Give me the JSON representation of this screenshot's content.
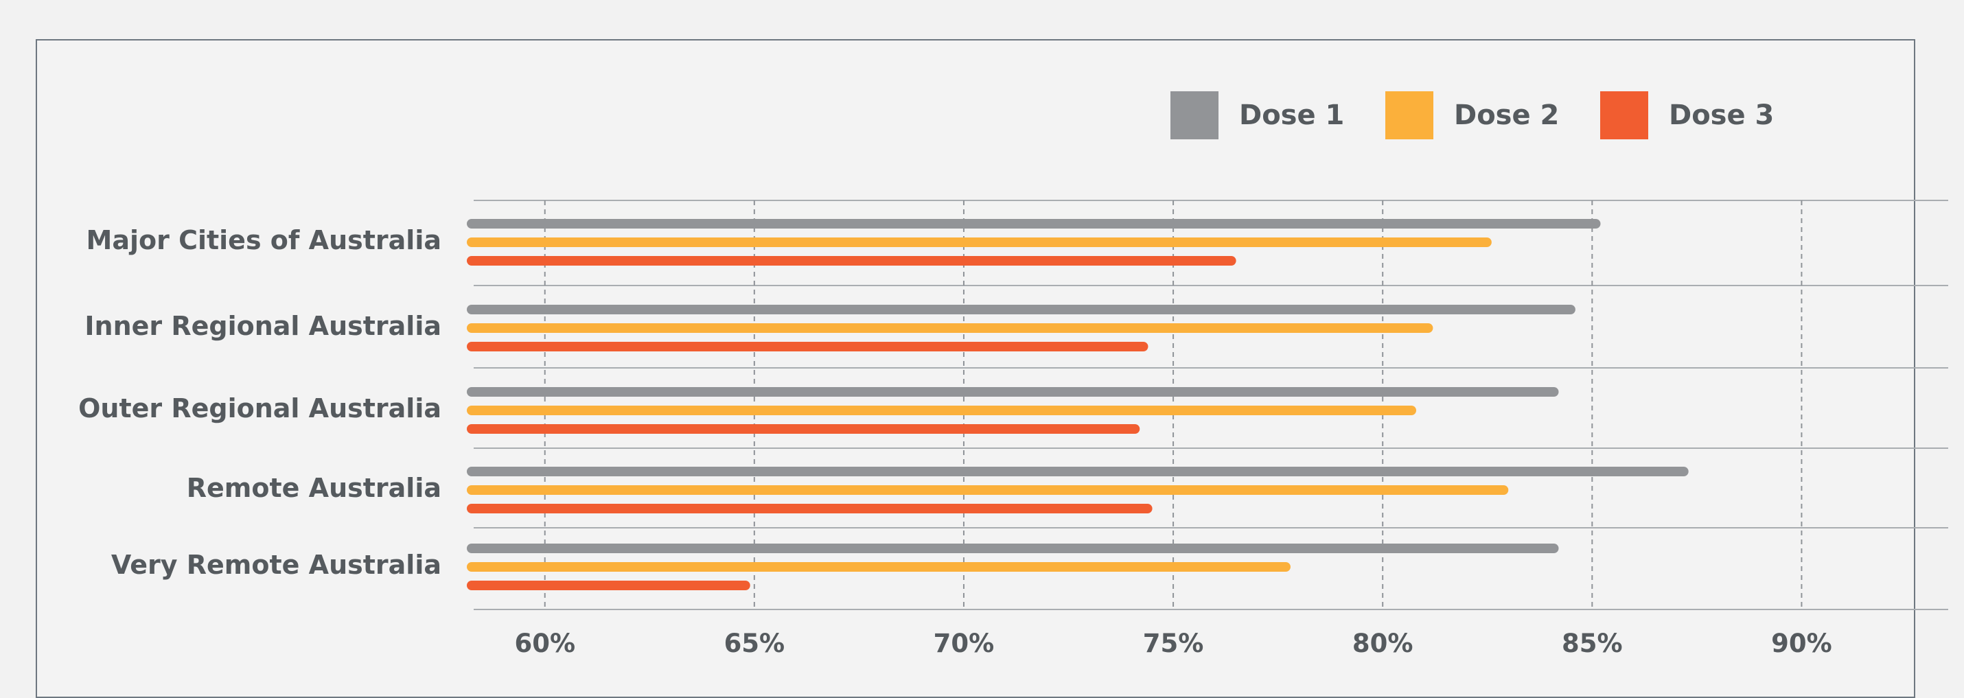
{
  "chart_data": {
    "type": "bar",
    "orientation": "horizontal",
    "categories": [
      "Major Cities of Australia",
      "Inner Regional Australia",
      "Outer Regional Australia",
      "Remote Australia",
      "Very Remote Australia"
    ],
    "series": [
      {
        "name": "Dose 1",
        "color": "#929497",
        "values": [
          85.2,
          84.6,
          84.2,
          87.3,
          84.2
        ]
      },
      {
        "name": "Dose 2",
        "color": "#fbb03b",
        "values": [
          82.6,
          81.2,
          80.8,
          83.0,
          77.8
        ]
      },
      {
        "name": "Dose 3",
        "color": "#f15d30",
        "values": [
          76.5,
          74.4,
          74.2,
          74.5,
          64.9
        ]
      }
    ],
    "x_ticks": [
      "60%",
      "65%",
      "70%",
      "75%",
      "80%",
      "85%",
      "90%"
    ],
    "x_tick_values": [
      60,
      65,
      70,
      75,
      80,
      85,
      90
    ],
    "xlim": [
      58.3,
      93.5
    ],
    "legend_position": "top-right",
    "grid": "vertical dashed"
  }
}
